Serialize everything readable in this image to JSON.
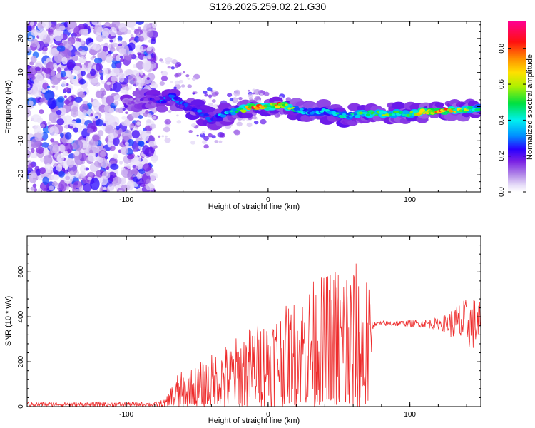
{
  "figure": {
    "title": "S126.2025.259.02.21.G30"
  },
  "chart_data": [
    {
      "type": "heatmap",
      "xlabel": "Height of straight line (km)",
      "ylabel": "Frequency (Hz)",
      "xlim": [
        -170,
        150
      ],
      "ylim": [
        -25,
        25
      ],
      "x_ticks": [
        -100,
        0,
        100
      ],
      "y_ticks": [
        -20,
        -10,
        0,
        10,
        20
      ],
      "colorbar": {
        "label": "Normalized spectral amplitude",
        "range": [
          0,
          0.95
        ],
        "ticks": [
          0.0,
          0.2,
          0.4,
          0.6,
          0.8
        ]
      },
      "ridge": {
        "description_points_x": [
          -95,
          -85,
          -75,
          -68,
          -60,
          -50,
          -40,
          -30,
          -20,
          -10,
          0,
          10,
          20,
          30,
          40,
          50,
          60,
          70,
          80,
          90,
          100,
          110,
          120,
          130,
          140,
          148
        ],
        "frequency": [
          1.5,
          2.5,
          1.5,
          3.0,
          0.5,
          -1.0,
          -4.0,
          -2.0,
          -1.0,
          0.0,
          0.0,
          0.5,
          -1.0,
          -1.5,
          -1.5,
          -2.5,
          -2.5,
          -2.0,
          -2.0,
          -2.0,
          -2.0,
          -1.5,
          -1.5,
          -1.0,
          -1.0,
          -0.5
        ],
        "peak_amplitude": [
          0.15,
          0.2,
          0.3,
          0.35,
          0.3,
          0.3,
          0.3,
          0.4,
          0.55,
          0.85,
          0.65,
          0.9,
          0.45,
          0.4,
          0.4,
          0.45,
          0.45,
          0.6,
          0.6,
          0.55,
          0.55,
          0.75,
          0.9,
          0.7,
          0.6,
          0.5
        ]
      }
    },
    {
      "type": "line",
      "xlabel": "Height of straight line (km)",
      "ylabel": "SNR (10 * v/v)",
      "xlim": [
        -170,
        150
      ],
      "ylim": [
        0,
        760
      ],
      "x_ticks": [
        -100,
        0,
        100
      ],
      "y_ticks": [
        0,
        200,
        400,
        600
      ],
      "series": [
        {
          "color": "#ee2b2b",
          "envelope_x": [
            -170,
            -80,
            -72,
            -65,
            -55,
            -45,
            -35,
            -25,
            -15,
            -5,
            5,
            15,
            25,
            30,
            35,
            40,
            45,
            50,
            55,
            60,
            65,
            70,
            74,
            76,
            80,
            90,
            100,
            110,
            120,
            125,
            130,
            135,
            140,
            145,
            150
          ],
          "baseline": [
            10,
            10,
            15,
            40,
            60,
            80,
            110,
            130,
            160,
            190,
            210,
            230,
            250,
            260,
            250,
            240,
            250,
            240,
            240,
            230,
            230,
            220,
            360,
            370,
            370,
            370,
            370,
            370,
            370,
            370,
            370,
            370,
            370,
            370,
            370
          ],
          "amplitude": [
            10,
            10,
            20,
            110,
            110,
            130,
            150,
            170,
            190,
            200,
            210,
            230,
            260,
            300,
            330,
            350,
            380,
            420,
            450,
            430,
            400,
            380,
            10,
            10,
            12,
            12,
            15,
            20,
            25,
            40,
            70,
            100,
            110,
            120,
            110
          ]
        }
      ]
    }
  ]
}
